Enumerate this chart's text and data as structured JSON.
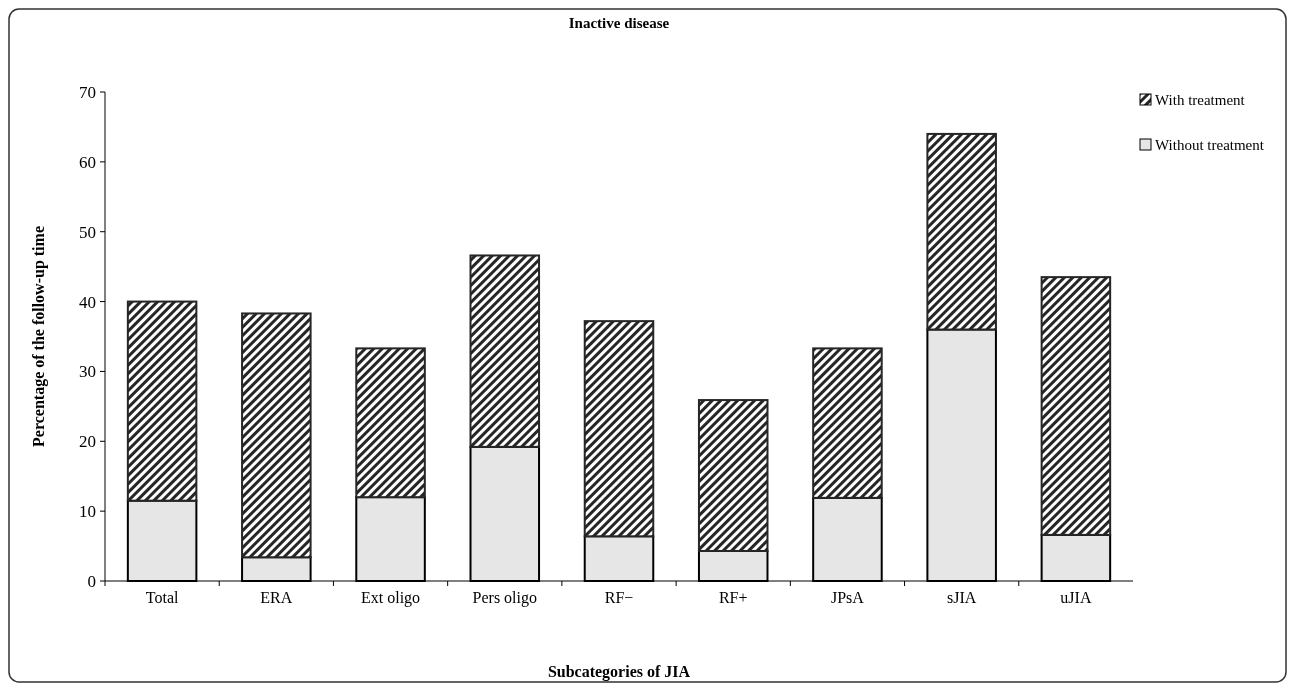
{
  "chart_data": {
    "type": "bar",
    "title": "Inactive disease",
    "xlabel": "Subcategories of JIA",
    "ylabel": "Percentage of the follow-up time",
    "categories": [
      "Total",
      "ERA",
      "Ext oligo",
      "Pers oligo",
      "RF−",
      "RF+",
      "JPsA",
      "sJIA",
      "uJIA"
    ],
    "stacked": true,
    "series": [
      {
        "name": "Without treatment",
        "color": "#e6e6e6",
        "values": [
          11.5,
          3.4,
          12,
          19.2,
          6.4,
          4.3,
          11.9,
          36,
          6.6
        ]
      },
      {
        "name": "With treatment",
        "color": "#262626",
        "values": [
          28.5,
          34.9,
          21.3,
          27.4,
          30.8,
          21.6,
          21.4,
          28,
          36.9
        ]
      }
    ],
    "ylim": [
      0,
      70
    ],
    "yticks": [
      0,
      10,
      20,
      30,
      40,
      50,
      60,
      70
    ],
    "grid": false,
    "legend": "top right"
  }
}
